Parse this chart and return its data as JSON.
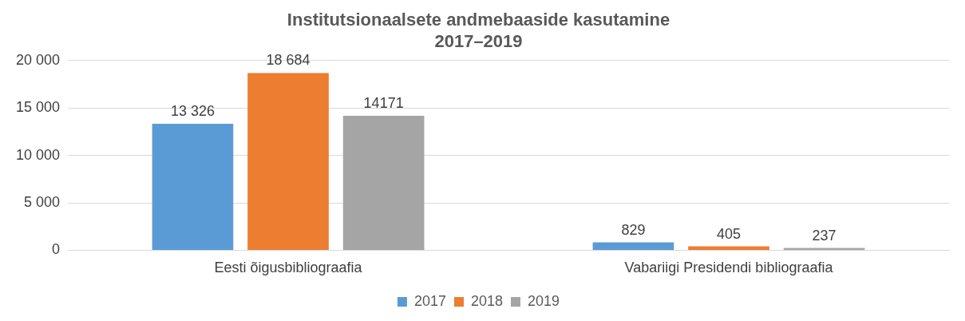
{
  "chart_data": {
    "type": "bar",
    "title": "Institutsionaalsete andmebaaside kasutamine\n2017–2019",
    "categories": [
      "Eesti õigusbibliograafia",
      "Vabariigi Presidendi bibliograafia"
    ],
    "series": [
      {
        "name": "2017",
        "color": "#5b9bd5",
        "values": [
          13326,
          829
        ],
        "value_labels": [
          "13 326",
          "829"
        ]
      },
      {
        "name": "2018",
        "color": "#ed7d31",
        "values": [
          18684,
          405
        ],
        "value_labels": [
          "18 684",
          "405"
        ]
      },
      {
        "name": "2019",
        "color": "#a5a5a5",
        "values": [
          14171,
          237
        ],
        "value_labels": [
          "14171",
          "237"
        ]
      }
    ],
    "ylim": [
      0,
      20000
    ],
    "yticks": [
      {
        "value": 0,
        "label": "0"
      },
      {
        "value": 5000,
        "label": "5 000"
      },
      {
        "value": 10000,
        "label": "10 000"
      },
      {
        "value": 15000,
        "label": "15 000"
      },
      {
        "value": 20000,
        "label": "20 000"
      }
    ],
    "grid": "y",
    "legend": "bottom"
  }
}
